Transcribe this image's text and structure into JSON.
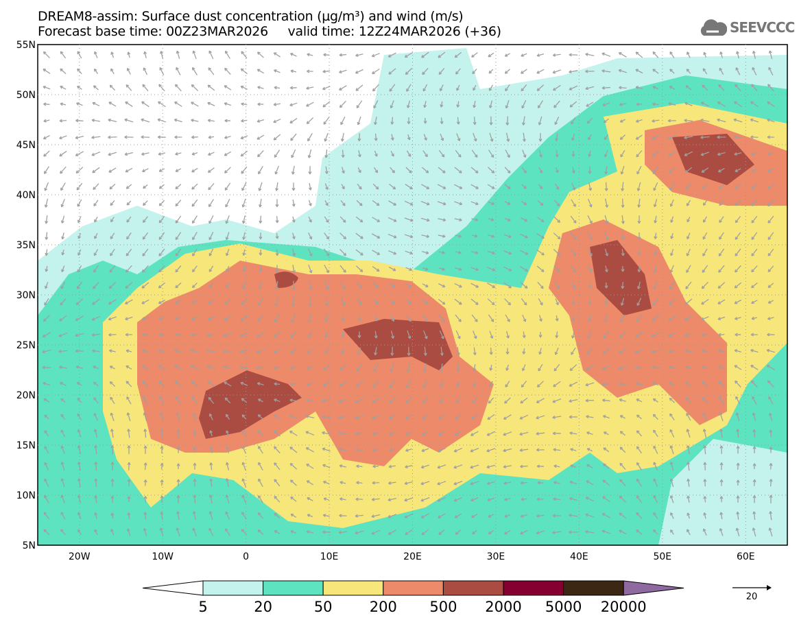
{
  "header": {
    "title_line1": "DREAM8-assim: Surface dust concentration (µg/m³) and wind (m/s)",
    "title_line2": "Forecast base time: 00Z23MAR2026     valid time: 12Z24MAR2026 (+36)",
    "logo_text": "SEEVCCC"
  },
  "map": {
    "lat_labels": [
      "55N",
      "50N",
      "45N",
      "40N",
      "35N",
      "30N",
      "25N",
      "20N",
      "15N",
      "10N",
      "5N"
    ],
    "lon_labels": [
      "20W",
      "10W",
      "0",
      "10E",
      "20E",
      "30E",
      "40E",
      "50E",
      "60E"
    ],
    "extent": {
      "lon": [
        -25,
        65
      ],
      "lat": [
        5,
        55
      ]
    }
  },
  "legend": {
    "levels": [
      "5",
      "20",
      "50",
      "200",
      "500",
      "2000",
      "5000",
      "20000"
    ],
    "colors": [
      "#c4f2ec",
      "#5de3bf",
      "#f7e67a",
      "#ec8a6a",
      "#ab4c42",
      "#850030",
      "#3c2614",
      "#8e6aa0"
    ],
    "wind_ref_label": "20"
  }
}
